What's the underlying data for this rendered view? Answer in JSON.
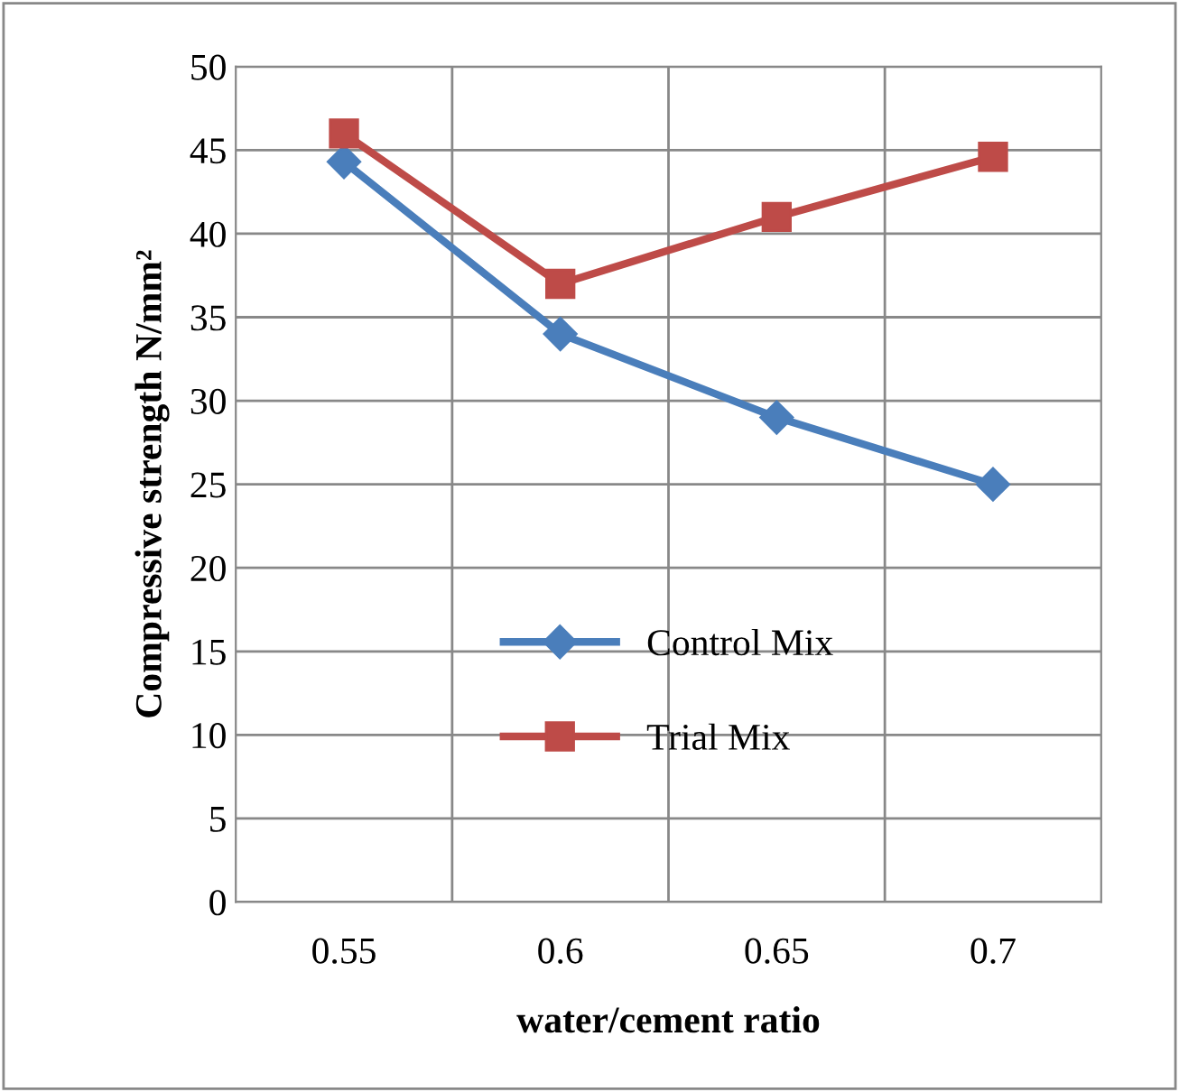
{
  "chart_data": {
    "type": "line",
    "xlabel": "water/cement ratio",
    "ylabel": "Compressive strength N/mm²",
    "categories": [
      "0.55",
      "0.6",
      "0.65",
      "0.7"
    ],
    "series": [
      {
        "name": "Control Mix",
        "color": "#4a7ebb",
        "values": [
          44.3,
          34,
          29,
          25
        ],
        "marker": "diamond"
      },
      {
        "name": "Trial Mix",
        "color": "#be4b48",
        "values": [
          46,
          37,
          41,
          44.6
        ],
        "marker": "square"
      }
    ],
    "ylim": [
      0,
      50
    ],
    "yticks": [
      0,
      5,
      10,
      15,
      20,
      25,
      30,
      35,
      40,
      45,
      50
    ],
    "grid": true,
    "legend": "center",
    "line_style": "solid"
  }
}
